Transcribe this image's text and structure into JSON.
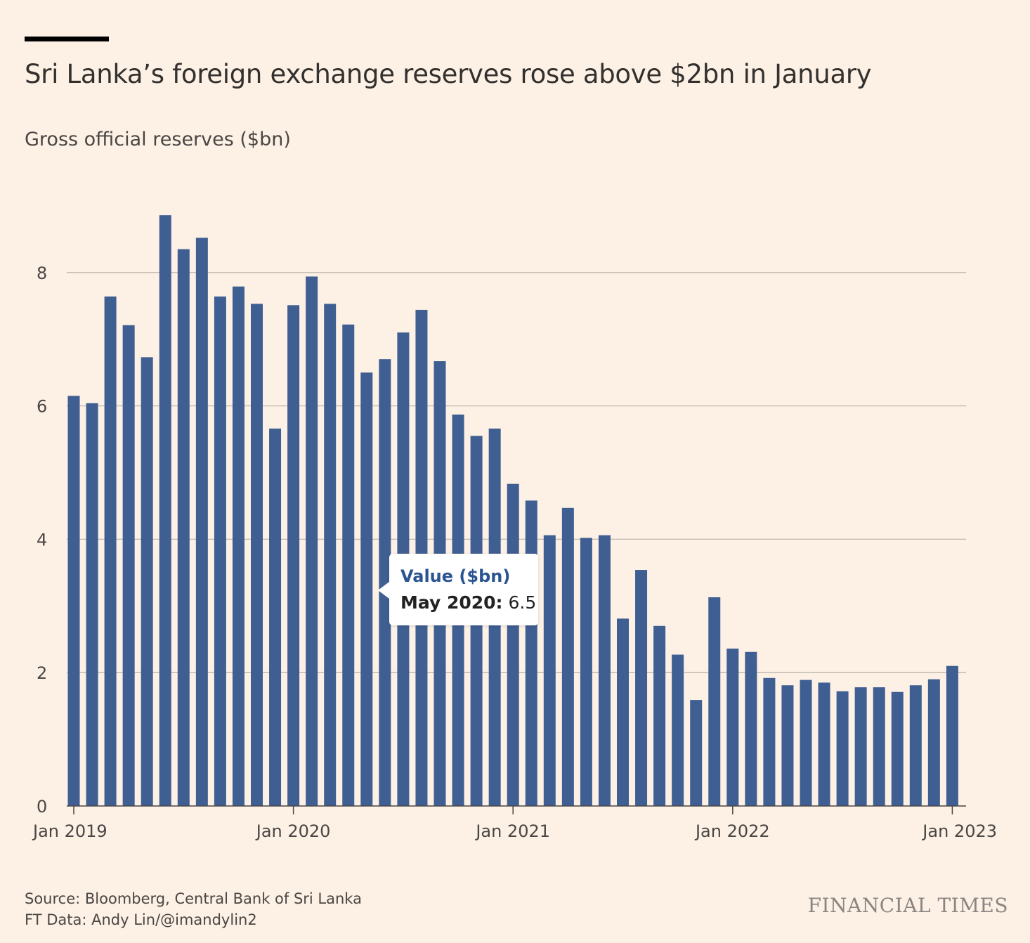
{
  "header": {
    "title": "Sri Lanka’s foreign exchange reserves rose above $2bn in January",
    "subtitle": "Gross official reserves ($bn)"
  },
  "tooltip": {
    "heading": "Value ($bn)",
    "label": "May 2020:",
    "value": "6.5"
  },
  "footer": {
    "source": "Source: Bloomberg, Central Bank of Sri Lanka",
    "credit": "FT Data: Andy Lin/@imandylin2",
    "logo": "FINANCIAL TIMES"
  },
  "colors": {
    "background": "#fdf1e6",
    "bar": "#3f5f92",
    "grid": "#bdb5ad",
    "axis": "#4a4643"
  },
  "chart_data": {
    "type": "bar",
    "ylim": [
      0,
      9
    ],
    "y_ticks": [
      0,
      2,
      4,
      6,
      8
    ],
    "x_ticks": [
      "Jan 2019",
      "Jan 2020",
      "Jan 2021",
      "Jan 2022",
      "Jan 2023"
    ],
    "grid": true,
    "categories": [
      "Jan 2019",
      "Feb 2019",
      "Mar 2019",
      "Apr 2019",
      "May 2019",
      "Jun 2019",
      "Jul 2019",
      "Aug 2019",
      "Sep 2019",
      "Oct 2019",
      "Nov 2019",
      "Dec 2019",
      "Jan 2020",
      "Feb 2020",
      "Mar 2020",
      "Apr 2020",
      "May 2020",
      "Jun 2020",
      "Jul 2020",
      "Aug 2020",
      "Sep 2020",
      "Oct 2020",
      "Nov 2020",
      "Dec 2020",
      "Jan 2021",
      "Feb 2021",
      "Mar 2021",
      "Apr 2021",
      "May 2021",
      "Jun 2021",
      "Jul 2021",
      "Aug 2021",
      "Sep 2021",
      "Oct 2021",
      "Nov 2021",
      "Dec 2021",
      "Jan 2022",
      "Feb 2022",
      "Mar 2022",
      "Apr 2022",
      "May 2022",
      "Jun 2022",
      "Jul 2022",
      "Aug 2022",
      "Sep 2022",
      "Oct 2022",
      "Nov 2022",
      "Dec 2022",
      "Jan 2023"
    ],
    "values": [
      6.15,
      6.04,
      7.64,
      7.21,
      6.73,
      8.86,
      8.35,
      8.52,
      7.64,
      7.79,
      7.53,
      5.66,
      7.51,
      7.94,
      7.53,
      7.22,
      6.5,
      6.7,
      7.1,
      7.44,
      6.67,
      5.87,
      5.55,
      5.66,
      4.83,
      4.58,
      4.06,
      4.47,
      4.02,
      4.06,
      2.81,
      3.54,
      2.7,
      2.27,
      1.59,
      3.13,
      2.36,
      2.31,
      1.92,
      1.81,
      1.89,
      1.85,
      1.72,
      1.78,
      1.78,
      1.71,
      1.81,
      1.9,
      2.1
    ]
  }
}
